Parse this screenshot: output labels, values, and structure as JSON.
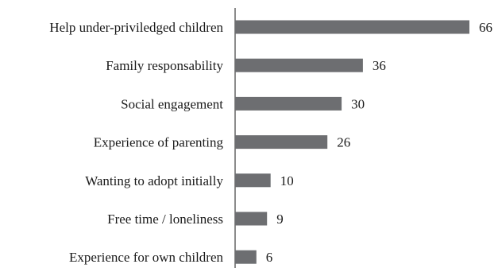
{
  "chart_data": {
    "type": "bar",
    "orientation": "horizontal",
    "categories": [
      "Help under-priviledged children",
      "Family responsability",
      "Social engagement",
      "Experience of parenting",
      "Wanting to adopt initially",
      "Free time / loneliness",
      "Experience for own children"
    ],
    "values": [
      66,
      36,
      30,
      26,
      10,
      9,
      6
    ],
    "value_labels": [
      "66",
      "36",
      "30",
      "26",
      "10",
      "9",
      "6"
    ],
    "xlim": [
      0,
      66
    ],
    "grid": false,
    "legend": "none",
    "colors": {
      "bar": "#6d6e71",
      "axis": "#1a1a1a",
      "text": "#1a1a1a"
    }
  }
}
